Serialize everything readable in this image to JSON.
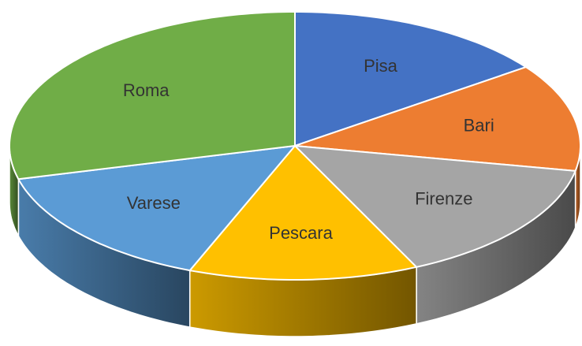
{
  "chart_data": {
    "type": "pie",
    "categories": [
      "Pisa",
      "Bari",
      "Firenze",
      "Pescara",
      "Varese",
      "Roma"
    ],
    "values": [
      15,
      13,
      15,
      13,
      15,
      29
    ],
    "colors": [
      "#4472c4",
      "#ed7d31",
      "#a5a5a5",
      "#ffc000",
      "#5b9bd5",
      "#70ad47"
    ],
    "start_angle": 0,
    "direction": "clockwise",
    "three_d": true
  }
}
